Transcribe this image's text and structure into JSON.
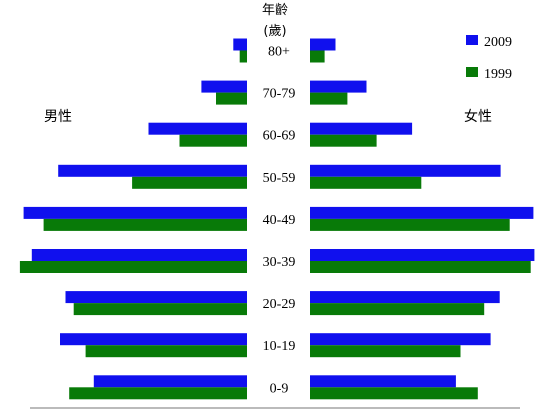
{
  "chart_data": {
    "type": "bar",
    "title": "年齡",
    "subtitle": "(歲)",
    "left_label": "男性",
    "right_label": "女性",
    "categories": [
      "80+",
      "70-79",
      "60-69",
      "50-59",
      "40-49",
      "30-39",
      "20-29",
      "10-19",
      "0-9"
    ],
    "series": [
      {
        "name": "2009",
        "color": "#1010ee",
        "male": [
          1.5,
          5.0,
          10.8,
          20.7,
          24.5,
          23.6,
          19.9,
          20.5,
          16.8
        ],
        "female": [
          2.8,
          6.2,
          11.2,
          20.9,
          24.5,
          24.6,
          20.8,
          19.8,
          16.0
        ]
      },
      {
        "name": "1999",
        "color": "#087a08",
        "male": [
          0.8,
          3.4,
          7.4,
          12.6,
          22.3,
          24.9,
          19.0,
          17.7,
          19.5
        ],
        "female": [
          1.6,
          4.1,
          7.3,
          12.2,
          21.9,
          24.2,
          19.1,
          16.5,
          18.4
        ]
      }
    ]
  }
}
